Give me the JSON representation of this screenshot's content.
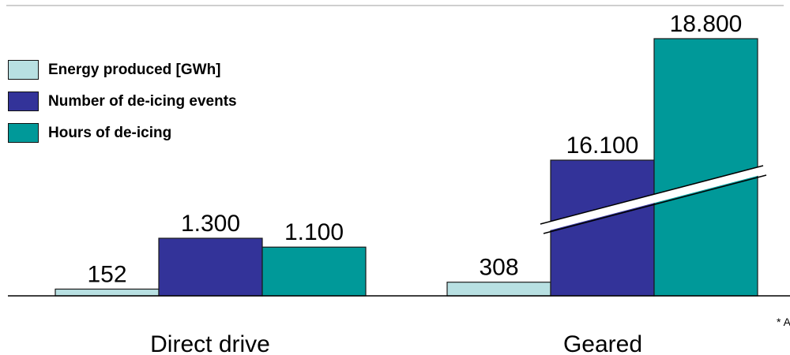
{
  "chart_data": {
    "type": "bar",
    "categories": [
      "Direct drive",
      "Geared"
    ],
    "series": [
      {
        "name": "Energy produced [GWh]",
        "color": "#b8e0e2",
        "values": [
          152,
          308
        ],
        "labels": [
          "152",
          "308"
        ]
      },
      {
        "name": "Number of de-icing events",
        "color": "#333399",
        "values": [
          1300,
          16100
        ],
        "labels": [
          "1.300",
          "16.100"
        ]
      },
      {
        "name": "Hours of de-icing",
        "color": "#009999",
        "values": [
          1100,
          18800
        ],
        "labels": [
          "1.100",
          "18.800"
        ]
      }
    ],
    "axis_break": true,
    "legend_position": "top-left",
    "footnote": "* A"
  }
}
